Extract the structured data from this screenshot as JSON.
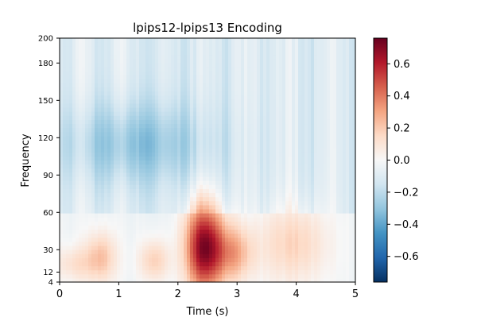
{
  "chart_data": {
    "type": "heatmap",
    "title": "lpips12-lpips13 Encoding",
    "xlabel": "Time (s)",
    "ylabel": "Frequency",
    "xlim": [
      0,
      5
    ],
    "ylim": [
      4,
      200
    ],
    "x_ticks": [
      0,
      1,
      2,
      3,
      4,
      5
    ],
    "x_tick_labels": [
      "0",
      "1",
      "2",
      "3",
      "4",
      "5"
    ],
    "y_ticks": [
      4,
      12,
      30,
      60,
      90,
      120,
      150,
      180,
      200
    ],
    "y_tick_labels": [
      "4",
      "12",
      "30",
      "60",
      "90",
      "120",
      "150",
      "180",
      "200"
    ],
    "colormap": "RdBu_r",
    "clim": [
      -0.76,
      0.76
    ],
    "colorbar_ticks": [
      -0.6,
      -0.4,
      -0.2,
      0.0,
      0.2,
      0.4,
      0.6
    ],
    "colorbar_tick_labels": [
      "−0.6",
      "−0.4",
      "−0.2",
      "0.0",
      "0.2",
      "0.4",
      "0.6"
    ],
    "grid": false,
    "notable_regions": [
      {
        "time": [
          2.2,
          2.7
        ],
        "frequency": [
          4,
          60
        ],
        "peak_value": 0.75
      },
      {
        "time": [
          2.7,
          3.2
        ],
        "frequency": [
          10,
          45
        ],
        "peak_value": 0.3
      },
      {
        "time": [
          0.5,
          0.9
        ],
        "frequency": [
          8,
          40
        ],
        "peak_value": 0.25
      },
      {
        "time": [
          1.4,
          1.8
        ],
        "frequency": [
          8,
          35
        ],
        "peak_value": 0.22
      },
      {
        "time": [
          3.5,
          4.4
        ],
        "frequency": [
          10,
          60
        ],
        "peak_value": 0.2
      },
      {
        "time": [
          0.0,
          0.5
        ],
        "frequency": [
          8,
          30
        ],
        "peak_value": 0.15
      },
      {
        "time": [
          0.3,
          2.2
        ],
        "frequency": [
          90,
          140
        ],
        "peak_value": -0.2
      }
    ]
  }
}
